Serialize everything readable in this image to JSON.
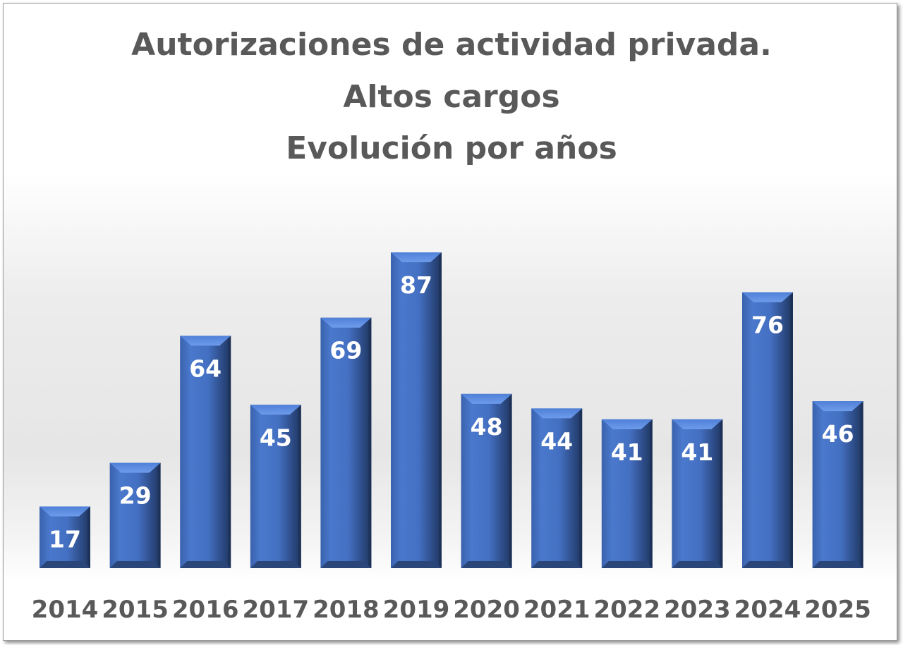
{
  "chart_data": {
    "type": "bar",
    "title_lines": [
      "Autorizaciones de actividad privada.",
      "Altos cargos",
      "Evolución por años"
    ],
    "categories": [
      "2014",
      "2015",
      "2016",
      "2017",
      "2018",
      "2019",
      "2020",
      "2021",
      "2022",
      "2023",
      "2024",
      "2025"
    ],
    "values": [
      17,
      29,
      64,
      45,
      69,
      87,
      48,
      44,
      41,
      41,
      76,
      46
    ],
    "xlabel": "",
    "ylabel": "",
    "ylim": [
      0,
      87
    ],
    "grid": false,
    "legend": "none",
    "bar_color": "#4472c4",
    "label_color": "#ffffff",
    "text_color": "#595959"
  }
}
